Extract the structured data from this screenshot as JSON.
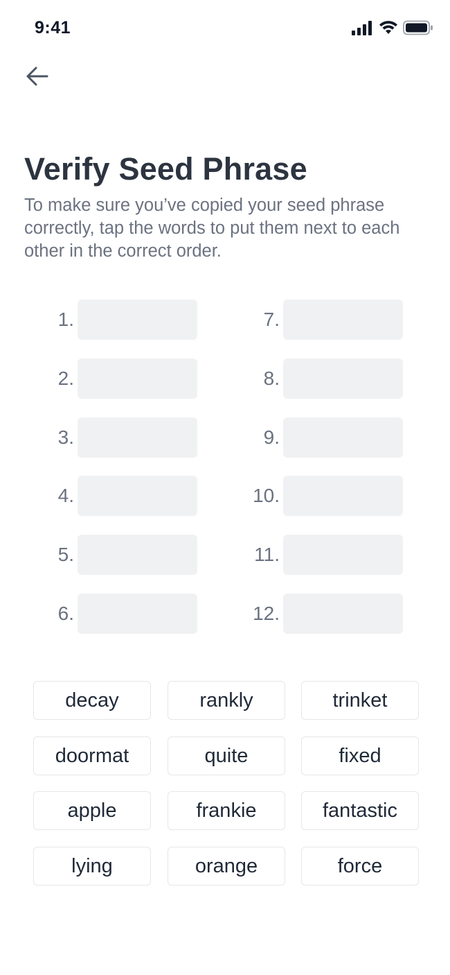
{
  "status_bar": {
    "time": "9:41",
    "icons": [
      "signal-icon",
      "wifi-icon",
      "battery-icon"
    ]
  },
  "header": {
    "back_icon": "arrow-left-icon"
  },
  "title": "Verify Seed Phrase",
  "subtitle": "To make sure you’ve copied your seed phrase correctly, tap the words to put them next to each other in the correct order.",
  "slots": [
    {
      "number": "1.",
      "value": ""
    },
    {
      "number": "2.",
      "value": ""
    },
    {
      "number": "3.",
      "value": ""
    },
    {
      "number": "4.",
      "value": ""
    },
    {
      "number": "5.",
      "value": ""
    },
    {
      "number": "6.",
      "value": ""
    },
    {
      "number": "7.",
      "value": ""
    },
    {
      "number": "8.",
      "value": ""
    },
    {
      "number": "9.",
      "value": ""
    },
    {
      "number": "10.",
      "value": ""
    },
    {
      "number": "11.",
      "value": ""
    },
    {
      "number": "12.",
      "value": ""
    }
  ],
  "words": [
    "decay",
    "rankly",
    "trinket",
    "doormat",
    "quite",
    "fixed",
    "apple",
    "frankie",
    "fantastic",
    "lying",
    "orange",
    "force"
  ],
  "colors": {
    "title": "#2d3440",
    "subtitle": "#6b7280",
    "slot_background": "#f0f1f3",
    "word_border": "#e5e7eb",
    "icon": "#4b5563"
  }
}
